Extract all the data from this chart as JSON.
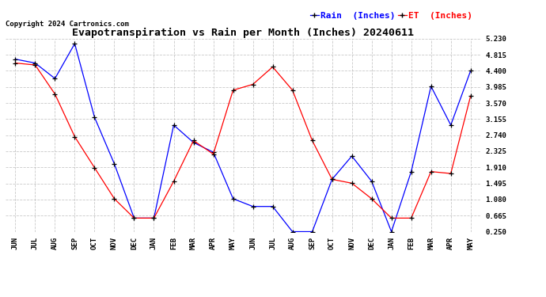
{
  "title": "Evapotranspiration vs Rain per Month (Inches) 20240611",
  "copyright": "Copyright 2024 Cartronics.com",
  "legend_rain": "Rain  (Inches)",
  "legend_et": "ET  (Inches)",
  "months": [
    "JUN",
    "JUL",
    "AUG",
    "SEP",
    "OCT",
    "NOV",
    "DEC",
    "JAN",
    "FEB",
    "MAR",
    "APR",
    "MAY",
    "JUN",
    "JUL",
    "AUG",
    "SEP",
    "OCT",
    "NOV",
    "DEC",
    "JAN",
    "FEB",
    "MAR",
    "APR",
    "MAY"
  ],
  "rain": [
    4.7,
    4.6,
    4.2,
    5.1,
    3.2,
    2.0,
    0.6,
    0.6,
    3.0,
    2.55,
    2.3,
    1.1,
    0.9,
    0.9,
    0.25,
    0.25,
    1.6,
    2.2,
    1.55,
    0.25,
    1.8,
    4.0,
    3.0,
    4.4
  ],
  "et": [
    4.6,
    4.55,
    3.8,
    2.7,
    1.9,
    1.1,
    0.6,
    0.6,
    1.55,
    2.6,
    2.25,
    3.9,
    4.05,
    4.5,
    3.9,
    2.6,
    1.6,
    1.5,
    1.1,
    0.6,
    0.6,
    1.8,
    1.75,
    3.75
  ],
  "ylim": [
    0.25,
    5.23
  ],
  "yticks": [
    0.25,
    0.665,
    1.08,
    1.495,
    1.91,
    2.325,
    2.74,
    3.155,
    3.57,
    3.985,
    4.4,
    4.815,
    5.23
  ],
  "rain_color": "blue",
  "et_color": "red",
  "marker_color": "black",
  "bg_color": "#ffffff",
  "grid_color": "#bbbbbb",
  "title_color": "#000000",
  "copyright_color": "#000000",
  "title_fontsize": 9.5,
  "copyright_fontsize": 6.5,
  "axis_fontsize": 6.5,
  "legend_fontsize": 8
}
